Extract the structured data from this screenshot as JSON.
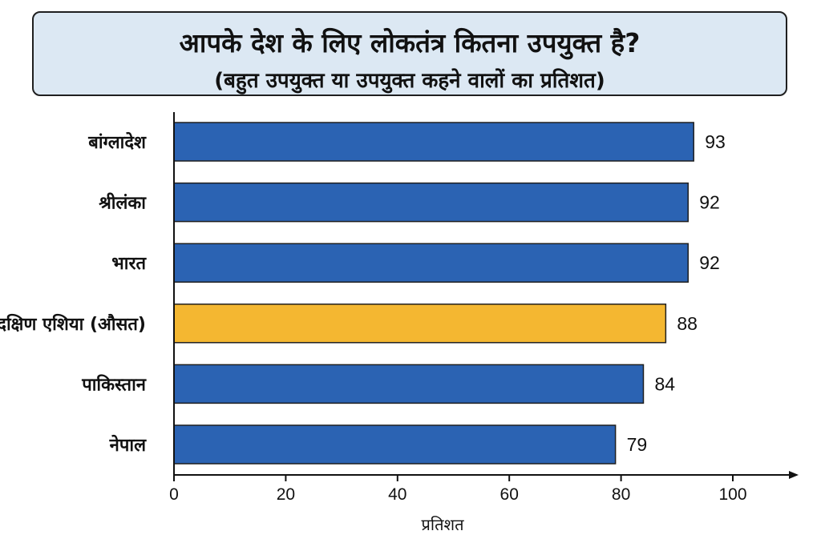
{
  "chart_data": {
    "type": "bar",
    "orientation": "horizontal",
    "title": "आपके देश के लिए लोकतंत्र कितना उपयुक्त है?",
    "subtitle": "(बहुत उपयुक्त या उपयुक्त कहने वालों का प्रतिशत)",
    "xlabel": "प्रतिशत",
    "ylabel": "",
    "xlim": [
      0,
      100
    ],
    "xticks": [
      0,
      20,
      40,
      60,
      80,
      100
    ],
    "grid": false,
    "categories": [
      "बांग्लादेश",
      "श्रीलंका",
      "भारत",
      "दक्षिण एशिया (औसत)",
      "पाकिस्तान",
      "नेपाल"
    ],
    "values": [
      93,
      92,
      92,
      88,
      84,
      79
    ],
    "highlight": "दक्षिण एशिया (औसत)",
    "colors": {
      "bar": "#2b63b3",
      "highlight": "#f4b731",
      "edge": "#1f1f1f",
      "title_bg": "#dce8f3"
    }
  }
}
